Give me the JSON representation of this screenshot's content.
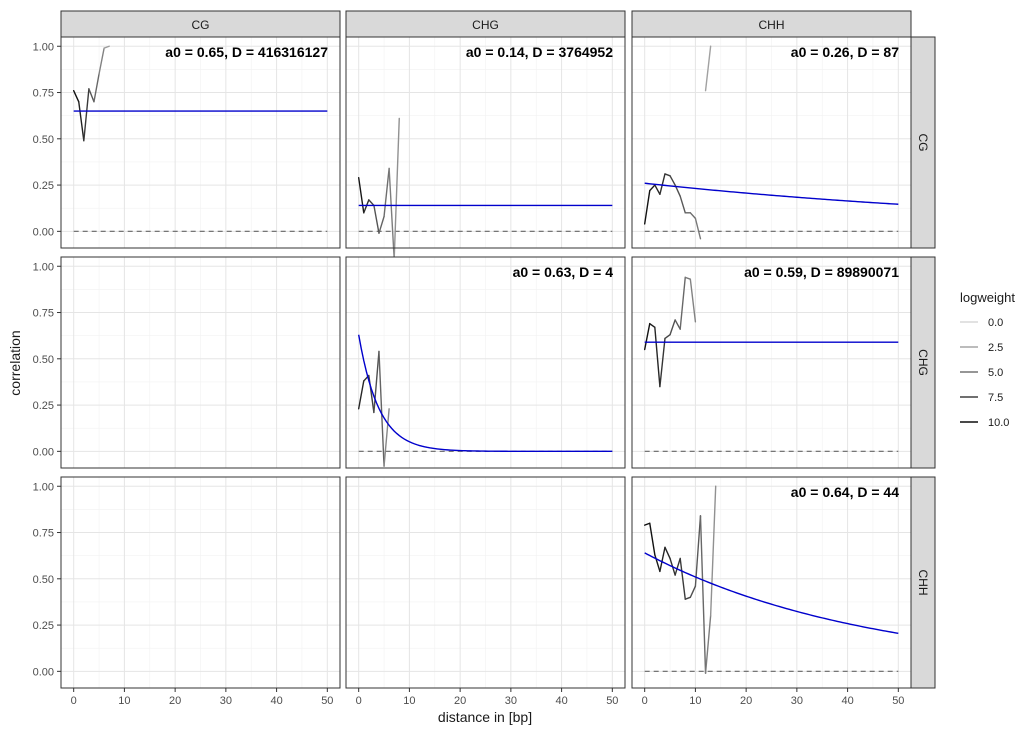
{
  "chart_data": {
    "type": "line",
    "facet_cols": [
      "CG",
      "CHG",
      "CHH"
    ],
    "facet_rows": [
      "CG",
      "CHG",
      "CHH"
    ],
    "xlabel": "distance in [bp]",
    "ylabel": "correlation",
    "xlim": [
      -2.5,
      52.5
    ],
    "ylim": [
      -0.09,
      1.05
    ],
    "x_ticks": [
      0,
      10,
      20,
      30,
      40,
      50
    ],
    "y_ticks": [
      0.0,
      0.25,
      0.5,
      0.75,
      1.0
    ],
    "x_tick_labels": [
      "0",
      "10",
      "20",
      "30",
      "40",
      "50"
    ],
    "y_tick_labels": [
      "0.00",
      "0.25",
      "0.50",
      "0.75",
      "1.00"
    ],
    "legend": {
      "title": "logweight",
      "position": "right",
      "entries": [
        {
          "label": "0.0",
          "color": "#d9d9d9"
        },
        {
          "label": "2.5",
          "color": "#a6a6a6"
        },
        {
          "label": "5.0",
          "color": "#737373"
        },
        {
          "label": "7.5",
          "color": "#404040"
        },
        {
          "label": "10.0",
          "color": "#0d0d0d"
        }
      ]
    },
    "fit_color": "#0000cc",
    "reference_line": {
      "y": 0,
      "style": "dashed",
      "color": "#666666"
    },
    "panels": [
      {
        "row": "CG",
        "col": "CG",
        "annotation": "a0 = 0.65, D = 416316127",
        "fit": {
          "a0": 0.65,
          "D": 416316127
        },
        "observed": [
          {
            "x": 0,
            "y": 0.76,
            "w": 10
          },
          {
            "x": 1,
            "y": 0.7,
            "w": 9.5
          },
          {
            "x": 2,
            "y": 0.49,
            "w": 8.5
          },
          {
            "x": 3,
            "y": 0.77,
            "w": 7
          },
          {
            "x": 4,
            "y": 0.7,
            "w": 6
          },
          {
            "x": 5,
            "y": 0.85,
            "w": 5
          },
          {
            "x": 6,
            "y": 0.99,
            "w": 3.5
          },
          {
            "x": 7,
            "y": 1.0,
            "w": 2.5
          }
        ]
      },
      {
        "row": "CG",
        "col": "CHG",
        "annotation": "a0 = 0.14, D = 3764952",
        "fit": {
          "a0": 0.14,
          "D": 3764952
        },
        "observed": [
          {
            "x": 0,
            "y": 0.29,
            "w": 10
          },
          {
            "x": 1,
            "y": 0.1,
            "w": 9
          },
          {
            "x": 2,
            "y": 0.17,
            "w": 8
          },
          {
            "x": 3,
            "y": 0.14,
            "w": 7
          },
          {
            "x": 4,
            "y": -0.01,
            "w": 6
          },
          {
            "x": 5,
            "y": 0.08,
            "w": 5.5
          },
          {
            "x": 6,
            "y": 0.34,
            "w": 5
          },
          {
            "x": 7,
            "y": -0.15,
            "w": 4
          },
          {
            "x": 8,
            "y": 0.61,
            "w": 3
          }
        ]
      },
      {
        "row": "CG",
        "col": "CHH",
        "annotation": "a0 = 0.26, D = 87",
        "fit": {
          "a0": 0.26,
          "D": 87
        },
        "observed": [
          {
            "x": 0,
            "y": 0.04,
            "w": 10
          },
          {
            "x": 1,
            "y": 0.22,
            "w": 9.5
          },
          {
            "x": 2,
            "y": 0.25,
            "w": 9
          },
          {
            "x": 3,
            "y": 0.2,
            "w": 8.5
          },
          {
            "x": 4,
            "y": 0.31,
            "w": 8
          },
          {
            "x": 5,
            "y": 0.3,
            "w": 7.5
          },
          {
            "x": 6,
            "y": 0.25,
            "w": 7
          },
          {
            "x": 7,
            "y": 0.19,
            "w": 6.5
          },
          {
            "x": 8,
            "y": 0.1,
            "w": 6
          },
          {
            "x": 9,
            "y": 0.1,
            "w": 5.5
          },
          {
            "x": 10,
            "y": 0.07,
            "w": 5
          },
          {
            "x": 11,
            "y": -0.04,
            "w": 4.5
          }
        ],
        "observed_extra": [
          {
            "x": 12,
            "y": 0.76,
            "w": 3
          },
          {
            "x": 13,
            "y": 1.0,
            "w": 2.5
          }
        ]
      },
      {
        "row": "CHG",
        "col": "CG",
        "annotation": "",
        "fit": null,
        "observed": []
      },
      {
        "row": "CHG",
        "col": "CHG",
        "annotation": "a0 = 0.63, D = 4",
        "fit": {
          "a0": 0.63,
          "D": 4
        },
        "observed": [
          {
            "x": 0,
            "y": 0.23,
            "w": 9
          },
          {
            "x": 1,
            "y": 0.38,
            "w": 8.5
          },
          {
            "x": 2,
            "y": 0.41,
            "w": 8
          },
          {
            "x": 3,
            "y": 0.21,
            "w": 7
          },
          {
            "x": 4,
            "y": 0.54,
            "w": 6.5
          },
          {
            "x": 5,
            "y": -0.08,
            "w": 5
          },
          {
            "x": 6,
            "y": 0.23,
            "w": 3
          }
        ]
      },
      {
        "row": "CHG",
        "col": "CHH",
        "annotation": "a0 = 0.59, D = 89890071",
        "fit": {
          "a0": 0.59,
          "D": 89890071
        },
        "observed": [
          {
            "x": 0,
            "y": 0.55,
            "w": 10
          },
          {
            "x": 1,
            "y": 0.69,
            "w": 9.5
          },
          {
            "x": 2,
            "y": 0.67,
            "w": 9
          },
          {
            "x": 3,
            "y": 0.35,
            "w": 8.5
          },
          {
            "x": 4,
            "y": 0.61,
            "w": 7.5
          },
          {
            "x": 5,
            "y": 0.63,
            "w": 7
          },
          {
            "x": 6,
            "y": 0.71,
            "w": 6.5
          },
          {
            "x": 7,
            "y": 0.66,
            "w": 6
          },
          {
            "x": 8,
            "y": 0.94,
            "w": 5
          },
          {
            "x": 9,
            "y": 0.93,
            "w": 4.5
          },
          {
            "x": 10,
            "y": 0.7,
            "w": 4
          }
        ]
      },
      {
        "row": "CHH",
        "col": "CG",
        "annotation": "",
        "fit": null,
        "observed": []
      },
      {
        "row": "CHH",
        "col": "CHG",
        "annotation": "",
        "fit": null,
        "observed": []
      },
      {
        "row": "CHH",
        "col": "CHH",
        "annotation": "a0 = 0.64, D = 44",
        "fit": {
          "a0": 0.64,
          "D": 44
        },
        "observed": [
          {
            "x": 0,
            "y": 0.79,
            "w": 10
          },
          {
            "x": 1,
            "y": 0.8,
            "w": 10
          },
          {
            "x": 2,
            "y": 0.63,
            "w": 9.5
          },
          {
            "x": 3,
            "y": 0.54,
            "w": 9
          },
          {
            "x": 4,
            "y": 0.67,
            "w": 9
          },
          {
            "x": 5,
            "y": 0.61,
            "w": 8.5
          },
          {
            "x": 6,
            "y": 0.52,
            "w": 8
          },
          {
            "x": 7,
            "y": 0.61,
            "w": 8
          },
          {
            "x": 8,
            "y": 0.39,
            "w": 7.5
          },
          {
            "x": 9,
            "y": 0.4,
            "w": 7
          },
          {
            "x": 10,
            "y": 0.46,
            "w": 6.5
          },
          {
            "x": 11,
            "y": 0.84,
            "w": 6
          },
          {
            "x": 12,
            "y": -0.01,
            "w": 5
          },
          {
            "x": 13,
            "y": 0.3,
            "w": 4
          },
          {
            "x": 14,
            "y": 1.0,
            "w": 3
          }
        ]
      }
    ]
  }
}
